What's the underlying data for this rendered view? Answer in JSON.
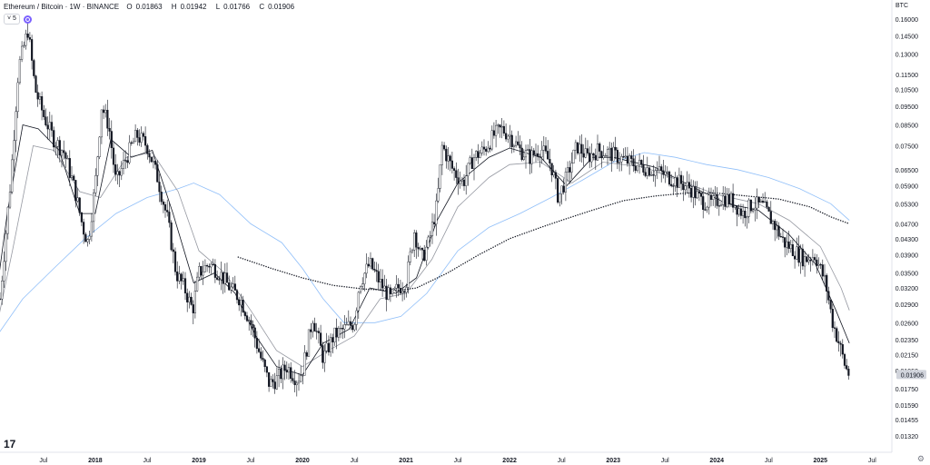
{
  "header": {
    "symbol": "Ethereum / Bitcoin · 1W · BINANCE",
    "open_label": "O",
    "open": "0.01863",
    "high_label": "H",
    "high": "0.01942",
    "low_label": "L",
    "low": "0.01766",
    "close_label": "C",
    "close": "0.01906"
  },
  "indicator_toggle": "5",
  "quote_currency": "BTC",
  "logo_text": "17",
  "current_price_label": "0.01906",
  "colors": {
    "candle": "#131722",
    "ma_fast": "#131722",
    "ma_slow": "#9598a1",
    "ma_blue": "#90bff9",
    "ma_dotted": "#131722",
    "price_tag_bg": "#d1d4dc",
    "axis_text": "#131722"
  },
  "chart_data": {
    "type": "candlestick",
    "y_scale": "log",
    "ylim": [
      0.0125,
      0.17
    ],
    "y_ticks": [
      "0.16000",
      "0.14500",
      "0.13000",
      "0.11500",
      "0.10500",
      "0.09500",
      "0.08500",
      "0.07500",
      "0.06500",
      "0.05900",
      "0.05300",
      "0.04700",
      "0.04300",
      "0.03900",
      "0.03500",
      "0.03200",
      "0.02900",
      "0.02600",
      "0.02350",
      "0.02150",
      "0.01950",
      "0.01750",
      "0.01590",
      "0.01455",
      "0.01320"
    ],
    "x_ticks": [
      "Jul",
      "2018",
      "Jul",
      "2019",
      "Jul",
      "2020",
      "Jul",
      "2021",
      "Jul",
      "2022",
      "Jul",
      "2023",
      "Jul",
      "2024",
      "Jul",
      "2025",
      "Jul"
    ],
    "x_tick_years": [
      2017.5,
      2018.0,
      2018.5,
      2019.0,
      2019.5,
      2020.0,
      2020.5,
      2021.0,
      2021.5,
      2022.0,
      2022.5,
      2023.0,
      2023.5,
      2024.0,
      2024.5,
      2025.0,
      2025.5
    ],
    "x_range": [
      2017.08,
      2025.69
    ],
    "price_path": [
      [
        2017.08,
        0.03
      ],
      [
        2017.18,
        0.06
      ],
      [
        2017.26,
        0.12
      ],
      [
        2017.35,
        0.15
      ],
      [
        2017.42,
        0.105
      ],
      [
        2017.5,
        0.09
      ],
      [
        2017.6,
        0.078
      ],
      [
        2017.7,
        0.072
      ],
      [
        2017.8,
        0.058
      ],
      [
        2017.88,
        0.046
      ],
      [
        2017.93,
        0.042
      ],
      [
        2018.0,
        0.06
      ],
      [
        2018.06,
        0.095
      ],
      [
        2018.13,
        0.085
      ],
      [
        2018.2,
        0.06
      ],
      [
        2018.3,
        0.07
      ],
      [
        2018.4,
        0.08
      ],
      [
        2018.5,
        0.075
      ],
      [
        2018.6,
        0.062
      ],
      [
        2018.7,
        0.048
      ],
      [
        2018.78,
        0.035
      ],
      [
        2018.86,
        0.032
      ],
      [
        2018.94,
        0.028
      ],
      [
        2019.0,
        0.035
      ],
      [
        2019.1,
        0.037
      ],
      [
        2019.2,
        0.035
      ],
      [
        2019.3,
        0.032
      ],
      [
        2019.4,
        0.03
      ],
      [
        2019.5,
        0.026
      ],
      [
        2019.6,
        0.021
      ],
      [
        2019.68,
        0.018
      ],
      [
        2019.75,
        0.0185
      ],
      [
        2019.85,
        0.02
      ],
      [
        2019.95,
        0.0185
      ],
      [
        2020.0,
        0.0195
      ],
      [
        2020.1,
        0.027
      ],
      [
        2020.2,
        0.021
      ],
      [
        2020.3,
        0.024
      ],
      [
        2020.4,
        0.025
      ],
      [
        2020.5,
        0.026
      ],
      [
        2020.55,
        0.033
      ],
      [
        2020.65,
        0.037
      ],
      [
        2020.75,
        0.033
      ],
      [
        2020.85,
        0.03
      ],
      [
        2020.92,
        0.032
      ],
      [
        2021.0,
        0.033
      ],
      [
        2021.08,
        0.045
      ],
      [
        2021.15,
        0.038
      ],
      [
        2021.22,
        0.042
      ],
      [
        2021.3,
        0.053
      ],
      [
        2021.35,
        0.075
      ],
      [
        2021.45,
        0.065
      ],
      [
        2021.55,
        0.06
      ],
      [
        2021.65,
        0.07
      ],
      [
        2021.75,
        0.073
      ],
      [
        2021.85,
        0.08
      ],
      [
        2021.92,
        0.083
      ],
      [
        2022.0,
        0.08
      ],
      [
        2022.1,
        0.073
      ],
      [
        2022.2,
        0.07
      ],
      [
        2022.3,
        0.074
      ],
      [
        2022.4,
        0.067
      ],
      [
        2022.47,
        0.055
      ],
      [
        2022.55,
        0.062
      ],
      [
        2022.65,
        0.075
      ],
      [
        2022.75,
        0.07
      ],
      [
        2022.85,
        0.073
      ],
      [
        2022.95,
        0.072
      ],
      [
        2023.05,
        0.07
      ],
      [
        2023.15,
        0.068
      ],
      [
        2023.3,
        0.066
      ],
      [
        2023.45,
        0.064
      ],
      [
        2023.55,
        0.062
      ],
      [
        2023.65,
        0.06
      ],
      [
        2023.75,
        0.058
      ],
      [
        2023.85,
        0.054
      ],
      [
        2023.95,
        0.053
      ],
      [
        2024.05,
        0.055
      ],
      [
        2024.15,
        0.054
      ],
      [
        2024.25,
        0.05
      ],
      [
        2024.35,
        0.053
      ],
      [
        2024.45,
        0.052
      ],
      [
        2024.55,
        0.047
      ],
      [
        2024.65,
        0.042
      ],
      [
        2024.75,
        0.04
      ],
      [
        2024.85,
        0.038
      ],
      [
        2024.95,
        0.039
      ],
      [
        2025.05,
        0.033
      ],
      [
        2025.12,
        0.026
      ],
      [
        2025.18,
        0.023
      ],
      [
        2025.24,
        0.02
      ],
      [
        2025.28,
        0.019
      ]
    ],
    "ma_blue": [
      [
        2017.0,
        0.023
      ],
      [
        2017.3,
        0.03
      ],
      [
        2017.6,
        0.036
      ],
      [
        2017.9,
        0.043
      ],
      [
        2018.2,
        0.05
      ],
      [
        2018.5,
        0.055
      ],
      [
        2018.8,
        0.058
      ],
      [
        2018.95,
        0.06
      ],
      [
        2019.2,
        0.056
      ],
      [
        2019.5,
        0.047
      ],
      [
        2019.8,
        0.042
      ],
      [
        2020.0,
        0.036
      ],
      [
        2020.2,
        0.03
      ],
      [
        2020.4,
        0.026
      ],
      [
        2020.7,
        0.026
      ],
      [
        2020.95,
        0.027
      ],
      [
        2021.2,
        0.031
      ],
      [
        2021.5,
        0.04
      ],
      [
        2021.8,
        0.046
      ],
      [
        2022.1,
        0.05
      ],
      [
        2022.4,
        0.055
      ],
      [
        2022.7,
        0.061
      ],
      [
        2023.0,
        0.068
      ],
      [
        2023.3,
        0.072
      ],
      [
        2023.6,
        0.07
      ],
      [
        2023.9,
        0.067
      ],
      [
        2024.2,
        0.065
      ],
      [
        2024.5,
        0.062
      ],
      [
        2024.8,
        0.058
      ],
      [
        2025.1,
        0.053
      ],
      [
        2025.28,
        0.048
      ]
    ],
    "ma_dotted": [
      [
        2019.38,
        0.0385
      ],
      [
        2019.7,
        0.036
      ],
      [
        2020.0,
        0.034
      ],
      [
        2020.3,
        0.0325
      ],
      [
        2020.6,
        0.0318
      ],
      [
        2020.9,
        0.0315
      ],
      [
        2021.1,
        0.032
      ],
      [
        2021.4,
        0.035
      ],
      [
        2021.7,
        0.039
      ],
      [
        2022.0,
        0.043
      ],
      [
        2022.3,
        0.046
      ],
      [
        2022.5,
        0.048
      ],
      [
        2022.8,
        0.051
      ],
      [
        2023.1,
        0.054
      ],
      [
        2023.4,
        0.0555
      ],
      [
        2023.7,
        0.0565
      ],
      [
        2024.0,
        0.0565
      ],
      [
        2024.3,
        0.0555
      ],
      [
        2024.6,
        0.0545
      ],
      [
        2024.9,
        0.052
      ],
      [
        2025.1,
        0.049
      ],
      [
        2025.28,
        0.047
      ]
    ],
    "ma_fast": [
      [
        2017.0,
        0.025
      ],
      [
        2017.15,
        0.05
      ],
      [
        2017.3,
        0.085
      ],
      [
        2017.45,
        0.083
      ],
      [
        2017.65,
        0.073
      ],
      [
        2017.85,
        0.05
      ],
      [
        2018.0,
        0.05
      ],
      [
        2018.15,
        0.078
      ],
      [
        2018.35,
        0.07
      ],
      [
        2018.55,
        0.073
      ],
      [
        2018.75,
        0.05
      ],
      [
        2018.95,
        0.033
      ],
      [
        2019.15,
        0.035
      ],
      [
        2019.35,
        0.031
      ],
      [
        2019.55,
        0.024
      ],
      [
        2019.75,
        0.02
      ],
      [
        2020.0,
        0.019
      ],
      [
        2020.2,
        0.023
      ],
      [
        2020.45,
        0.025
      ],
      [
        2020.65,
        0.032
      ],
      [
        2020.9,
        0.031
      ],
      [
        2021.1,
        0.034
      ],
      [
        2021.3,
        0.048
      ],
      [
        2021.5,
        0.06
      ],
      [
        2021.8,
        0.07
      ],
      [
        2022.0,
        0.074
      ],
      [
        2022.3,
        0.07
      ],
      [
        2022.55,
        0.059
      ],
      [
        2022.8,
        0.07
      ],
      [
        2023.0,
        0.07
      ],
      [
        2023.4,
        0.066
      ],
      [
        2023.8,
        0.058
      ],
      [
        2024.1,
        0.053
      ],
      [
        2024.4,
        0.051
      ],
      [
        2024.7,
        0.044
      ],
      [
        2024.95,
        0.037
      ],
      [
        2025.15,
        0.028
      ],
      [
        2025.28,
        0.023
      ]
    ],
    "ma_slow": [
      [
        2017.0,
        0.022
      ],
      [
        2017.2,
        0.04
      ],
      [
        2017.4,
        0.075
      ],
      [
        2017.6,
        0.073
      ],
      [
        2017.85,
        0.057
      ],
      [
        2018.05,
        0.055
      ],
      [
        2018.3,
        0.07
      ],
      [
        2018.55,
        0.072
      ],
      [
        2018.8,
        0.057
      ],
      [
        2019.0,
        0.04
      ],
      [
        2019.25,
        0.035
      ],
      [
        2019.5,
        0.028
      ],
      [
        2019.75,
        0.022
      ],
      [
        2020.0,
        0.02
      ],
      [
        2020.25,
        0.022
      ],
      [
        2020.5,
        0.024
      ],
      [
        2020.75,
        0.03
      ],
      [
        2021.0,
        0.031
      ],
      [
        2021.25,
        0.038
      ],
      [
        2021.5,
        0.052
      ],
      [
        2021.8,
        0.062
      ],
      [
        2022.0,
        0.067
      ],
      [
        2022.3,
        0.068
      ],
      [
        2022.6,
        0.06
      ],
      [
        2022.9,
        0.068
      ],
      [
        2023.3,
        0.066
      ],
      [
        2023.7,
        0.06
      ],
      [
        2024.0,
        0.056
      ],
      [
        2024.4,
        0.053
      ],
      [
        2024.7,
        0.048
      ],
      [
        2025.0,
        0.041
      ],
      [
        2025.2,
        0.032
      ],
      [
        2025.28,
        0.028
      ]
    ]
  }
}
